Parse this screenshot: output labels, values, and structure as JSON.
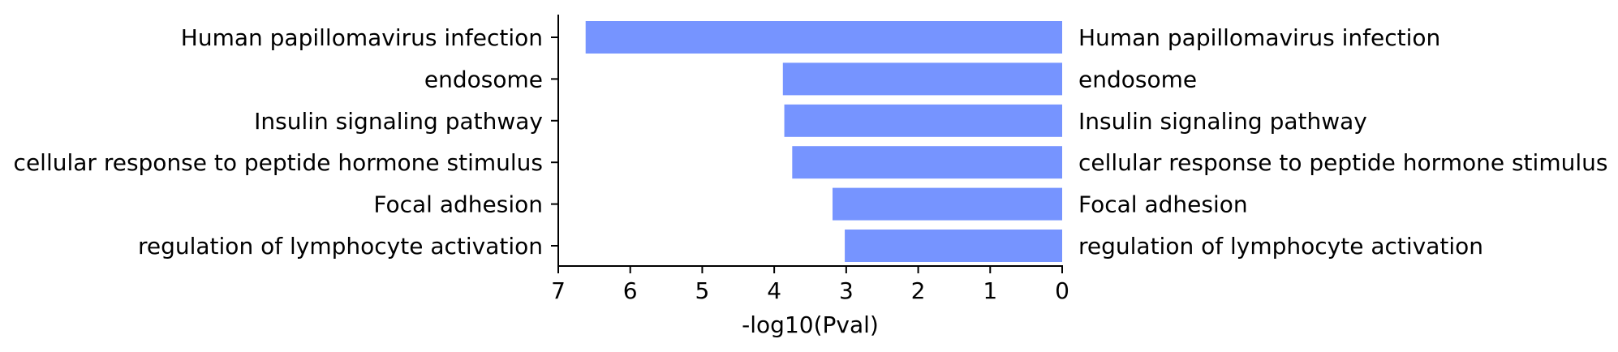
{
  "chart_data": {
    "type": "bar",
    "orientation": "horizontal",
    "x_direction": "reversed",
    "categories": [
      "Human papillomavirus infection",
      "endosome",
      "Insulin signaling pathway",
      "cellular response to peptide hormone stimulus",
      "Focal adhesion",
      "regulation of lymphocyte activation"
    ],
    "values": [
      6.62,
      3.88,
      3.86,
      3.75,
      3.19,
      3.02
    ],
    "xlabel": "-log10(Pval)",
    "xlim": [
      0,
      7
    ],
    "xticks": [
      "7",
      "6",
      "5",
      "4",
      "3",
      "2",
      "1",
      "0"
    ],
    "bar_color": "#7694ff",
    "grid": false,
    "legend": "none"
  }
}
